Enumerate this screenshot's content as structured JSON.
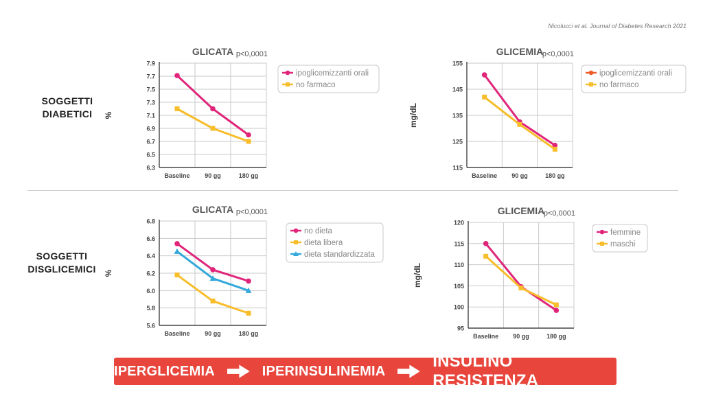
{
  "citation": "Nicolucci et al. Journal of Diabetes Research 2021",
  "row_labels": [
    "SOGGETTI\nDIABETICI",
    "SOGGETTI\nDISGLICEMICI"
  ],
  "banner": {
    "steps": [
      "IPERGLICEMIA",
      "IPERINSULINEMIA",
      "INSULINO RESISTENZA"
    ],
    "arrow_icon": "right-arrow-icon",
    "background": "#e8453c"
  },
  "colors": {
    "magenta": "#e0257a",
    "yellow": "#f7bd2a",
    "blue": "#33a8db",
    "orange": "#f05a28",
    "grid": "#c8c8c8",
    "axis": "#444444"
  },
  "chart_data": [
    {
      "type": "line",
      "title": "GLICATA",
      "annotation": "p<0,0001",
      "ylabel": "%",
      "categories": [
        "Baseline",
        "90 gg",
        "180 gg"
      ],
      "ylim": [
        6.3,
        7.9
      ],
      "yticks": [
        "7.9",
        "7.7",
        "7.5",
        "7.3",
        "7.1",
        "6.9",
        "6.7",
        "6.5",
        "6.3"
      ],
      "grid": true,
      "legend_position": "right",
      "series": [
        {
          "name": "ipoglicemizzanti orali",
          "values": [
            7.71,
            7.2,
            6.8
          ],
          "color": "#e0257a",
          "marker": "circle"
        },
        {
          "name": "no farmaco",
          "values": [
            7.2,
            6.9,
            6.7
          ],
          "color": "#f7bd2a",
          "marker": "square"
        }
      ]
    },
    {
      "type": "line",
      "title": "GLICEMIA",
      "annotation": "p<0,0001",
      "ylabel": "mg/dL",
      "categories": [
        "Baseline",
        "90 gg",
        "180 gg"
      ],
      "ylim": [
        115,
        155
      ],
      "yticks": [
        "155",
        "145",
        "135",
        "125",
        "115"
      ],
      "grid": true,
      "legend_position": "right",
      "series": [
        {
          "name": "ipoglicemizzanti orali",
          "values": [
            150.5,
            132.5,
            123.5
          ],
          "color": "#e0257a",
          "marker": "circle",
          "legend_color": "#f05a28"
        },
        {
          "name": "no farmaco",
          "values": [
            142,
            131.5,
            122
          ],
          "color": "#f7bd2a",
          "marker": "square"
        }
      ]
    },
    {
      "type": "line",
      "title": "GLICATA",
      "annotation": "p<0,0001",
      "ylabel": "%",
      "categories": [
        "Baseline",
        "90 gg",
        "180 gg"
      ],
      "ylim": [
        5.6,
        6.8
      ],
      "yticks": [
        "6.8",
        "6.6",
        "6.4",
        "6.2",
        "6.0",
        "5.8",
        "5.6"
      ],
      "grid": true,
      "legend_position": "right",
      "series": [
        {
          "name": "no dieta",
          "values": [
            6.54,
            6.24,
            6.11
          ],
          "color": "#e0257a",
          "marker": "circle"
        },
        {
          "name": "dieta libera",
          "values": [
            6.18,
            5.88,
            5.74
          ],
          "color": "#f7bd2a",
          "marker": "square"
        },
        {
          "name": "dieta standardizzata",
          "values": [
            6.45,
            6.14,
            6.0
          ],
          "color": "#33a8db",
          "marker": "triangle"
        }
      ]
    },
    {
      "type": "line",
      "title": "GLICEMIA",
      "annotation": "p<0,0001",
      "ylabel": "mg/dL",
      "categories": [
        "Baseline",
        "90 gg",
        "180 gg"
      ],
      "ylim": [
        95,
        120
      ],
      "yticks": [
        "120",
        "115",
        "110",
        "105",
        "100",
        "95"
      ],
      "grid": true,
      "legend_position": "right",
      "series": [
        {
          "name": "femmine",
          "values": [
            115,
            104.8,
            99.2
          ],
          "color": "#e0257a",
          "marker": "circle"
        },
        {
          "name": "maschi",
          "values": [
            112,
            104.5,
            100.5
          ],
          "color": "#f7bd2a",
          "marker": "square"
        }
      ]
    }
  ]
}
